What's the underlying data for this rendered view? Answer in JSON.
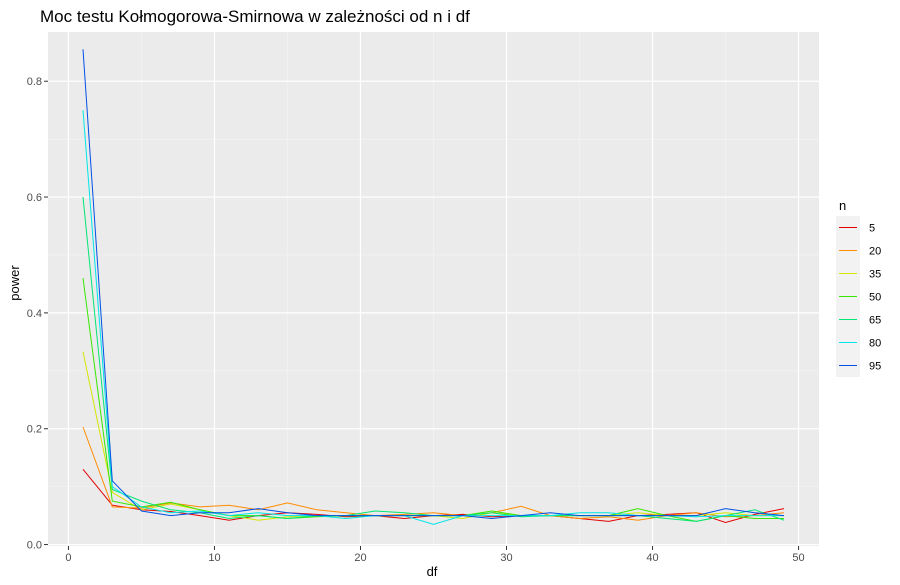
{
  "chart_data": {
    "type": "line",
    "title": "Moc testu Kołmogorowa-Smirnowa w zależności od n i df",
    "xlabel": "df",
    "ylabel": "power",
    "xlim": [
      -1.4,
      51.4
    ],
    "ylim": [
      -0.0025,
      0.885
    ],
    "x_ticks": [
      0,
      10,
      20,
      30,
      40,
      50
    ],
    "x_tick_labels": [
      "0",
      "10",
      "20",
      "30",
      "40",
      "50"
    ],
    "y_ticks": [
      0.0,
      0.2,
      0.4,
      0.6,
      0.8
    ],
    "y_tick_labels": [
      "0.0",
      "0.2",
      "0.4",
      "0.6",
      "0.8"
    ],
    "grid": true,
    "legend": {
      "title": "n",
      "placement": "right"
    },
    "x": [
      1,
      3,
      5,
      7,
      9,
      11,
      13,
      15,
      17,
      19,
      21,
      23,
      25,
      27,
      29,
      31,
      33,
      35,
      37,
      39,
      41,
      43,
      45,
      47,
      49
    ],
    "series": [
      {
        "name": "5",
        "color": "#E50000",
        "values": [
          0.13,
          0.068,
          0.06,
          0.057,
          0.05,
          0.042,
          0.05,
          0.055,
          0.052,
          0.048,
          0.05,
          0.045,
          0.05,
          0.052,
          0.048,
          0.05,
          0.05,
          0.045,
          0.04,
          0.05,
          0.052,
          0.055,
          0.038,
          0.052,
          0.062
        ]
      },
      {
        "name": "20",
        "color": "#FF8C00",
        "values": [
          0.203,
          0.065,
          0.063,
          0.072,
          0.065,
          0.068,
          0.06,
          0.072,
          0.06,
          0.055,
          0.05,
          0.052,
          0.055,
          0.05,
          0.055,
          0.066,
          0.05,
          0.045,
          0.048,
          0.042,
          0.05,
          0.055,
          0.048,
          0.05,
          0.055
        ]
      },
      {
        "name": "35",
        "color": "#D4E600",
        "values": [
          0.333,
          0.09,
          0.06,
          0.07,
          0.06,
          0.05,
          0.042,
          0.048,
          0.05,
          0.05,
          0.05,
          0.05,
          0.05,
          0.045,
          0.055,
          0.05,
          0.05,
          0.05,
          0.05,
          0.055,
          0.05,
          0.05,
          0.055,
          0.05,
          0.05
        ]
      },
      {
        "name": "50",
        "color": "#36E600",
        "values": [
          0.46,
          0.075,
          0.065,
          0.073,
          0.06,
          0.05,
          0.05,
          0.045,
          0.048,
          0.05,
          0.05,
          0.05,
          0.05,
          0.05,
          0.058,
          0.05,
          0.05,
          0.05,
          0.05,
          0.062,
          0.05,
          0.04,
          0.05,
          0.045,
          0.045
        ]
      },
      {
        "name": "65",
        "color": "#00E673",
        "values": [
          0.6,
          0.095,
          0.075,
          0.06,
          0.055,
          0.045,
          0.05,
          0.045,
          0.05,
          0.05,
          0.058,
          0.055,
          0.05,
          0.05,
          0.055,
          0.048,
          0.05,
          0.05,
          0.05,
          0.05,
          0.045,
          0.04,
          0.05,
          0.06,
          0.042
        ]
      },
      {
        "name": "80",
        "color": "#00E6E6",
        "values": [
          0.75,
          0.1,
          0.065,
          0.055,
          0.058,
          0.05,
          0.055,
          0.05,
          0.05,
          0.045,
          0.05,
          0.05,
          0.035,
          0.05,
          0.05,
          0.05,
          0.05,
          0.055,
          0.055,
          0.05,
          0.05,
          0.048,
          0.05,
          0.05,
          0.05
        ]
      },
      {
        "name": "95",
        "color": "#0050E6",
        "values": [
          0.855,
          0.11,
          0.058,
          0.05,
          0.055,
          0.055,
          0.062,
          0.055,
          0.05,
          0.05,
          0.05,
          0.05,
          0.05,
          0.05,
          0.045,
          0.05,
          0.055,
          0.05,
          0.05,
          0.05,
          0.05,
          0.05,
          0.062,
          0.055,
          0.05
        ]
      }
    ]
  }
}
